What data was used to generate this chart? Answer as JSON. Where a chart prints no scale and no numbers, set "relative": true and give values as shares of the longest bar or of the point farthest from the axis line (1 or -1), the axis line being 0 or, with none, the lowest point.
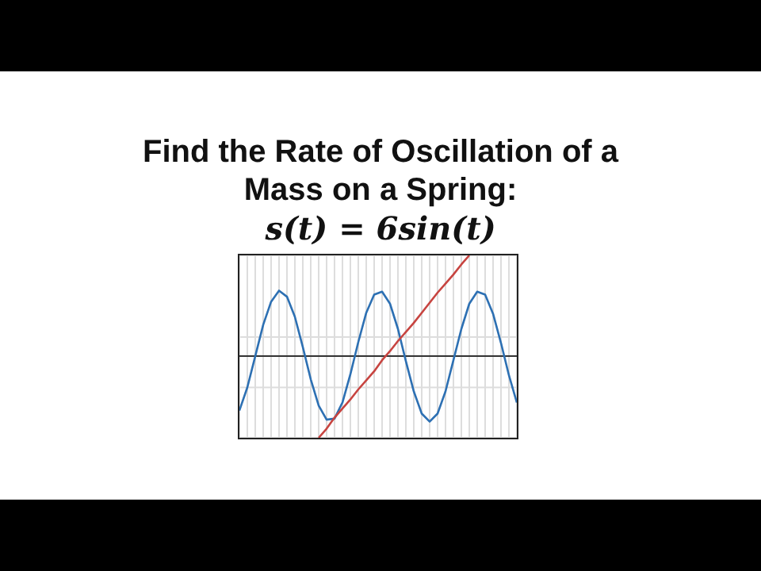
{
  "chart_data": {
    "type": "line",
    "title": "Find the Rate of Oscillation of a Mass on a Spring:",
    "subtitle": "s(t) = 6sin(t)",
    "relative": true,
    "grid": true,
    "legend": false,
    "marker": "none",
    "categories": [
      null,
      null,
      null,
      null,
      null,
      null,
      null,
      null,
      null,
      null,
      null,
      null,
      null,
      null,
      null,
      null,
      null,
      null,
      null,
      null,
      null,
      null,
      null,
      null,
      null,
      null,
      null,
      null,
      null,
      null,
      null,
      null,
      null,
      null,
      null,
      null
    ],
    "series": [
      {
        "color": "#2d70b3",
        "values": [
          -0.54,
          -0.31,
          0,
          0.31,
          0.54,
          0.65,
          0.59,
          0.39,
          0.09,
          -0.23,
          -0.49,
          -0.63,
          -0.62,
          -0.46,
          -0.18,
          0.14,
          0.43,
          0.61,
          0.64,
          0.52,
          0.27,
          -0.05,
          -0.35,
          -0.57,
          -0.65,
          -0.57,
          -0.35,
          -0.04,
          0.27,
          0.52,
          0.64,
          0.61,
          0.42,
          0.13,
          -0.19,
          -0.46
        ]
      },
      {
        "color": "#c74440",
        "values": [
          null,
          null,
          null,
          null,
          null,
          null,
          null,
          null,
          null,
          null,
          -0.81,
          -0.72,
          -0.61,
          -0.52,
          -0.43,
          -0.33,
          -0.24,
          -0.15,
          -0.04,
          0.05,
          0.15,
          0.24,
          0.33,
          0.43,
          0.53,
          0.63,
          0.72,
          0.81,
          0.91,
          1,
          null,
          null,
          null,
          null,
          null,
          null
        ]
      }
    ]
  }
}
